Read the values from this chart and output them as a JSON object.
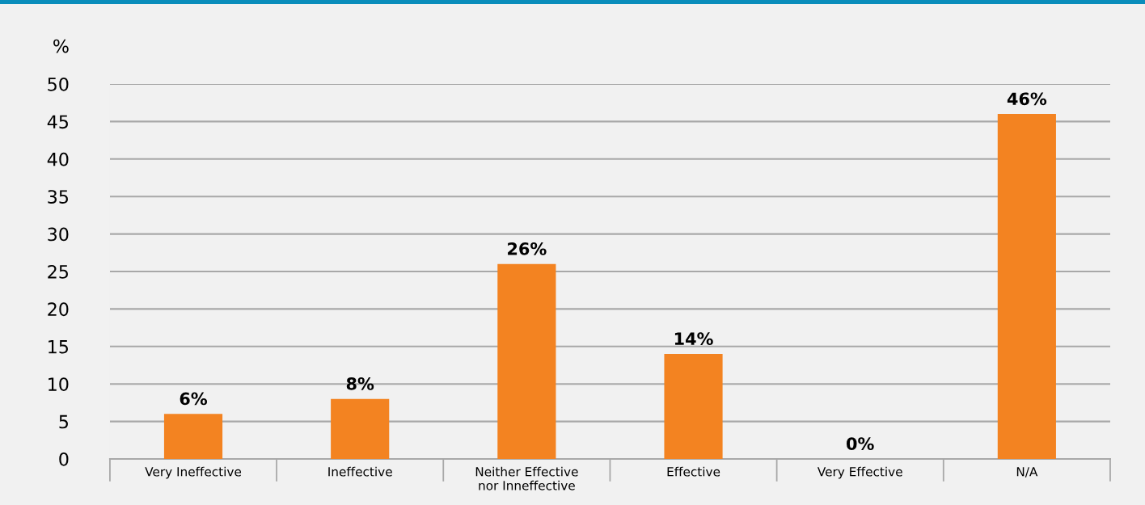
{
  "chart_data": {
    "type": "bar",
    "ylabel": "%",
    "categories": [
      "Very Ineffective",
      "Ineffective",
      "Neither Effective\nnor Inneffective",
      "Effective",
      "Very Effective",
      "N/A"
    ],
    "values": [
      6,
      8,
      26,
      14,
      0,
      46
    ],
    "value_labels": [
      "6%",
      "8%",
      "26%",
      "14%",
      "0%",
      "46%"
    ],
    "color": "#f38321",
    "ylim": [
      0,
      50
    ],
    "yticks": [
      0,
      5,
      10,
      15,
      20,
      25,
      30,
      35,
      40,
      45,
      50
    ],
    "grid": "y"
  }
}
